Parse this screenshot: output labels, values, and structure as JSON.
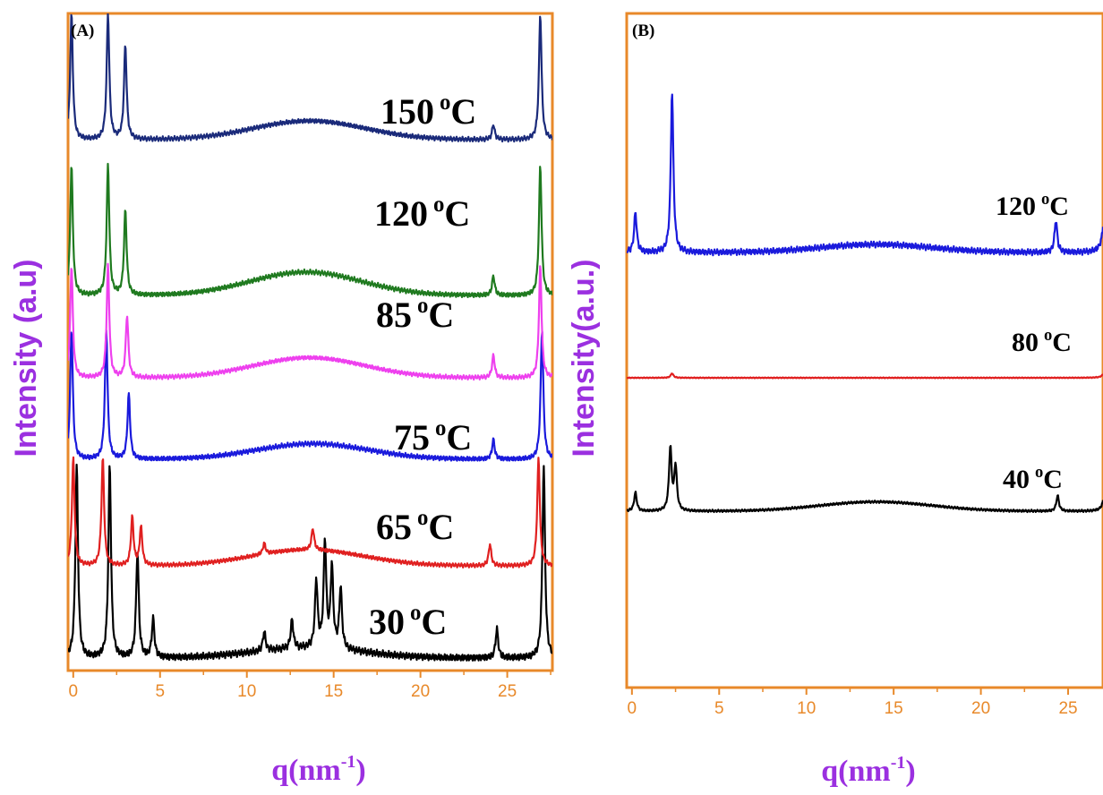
{
  "frame_color": "#e8892a",
  "label_color": "#9b30e0",
  "chart_data": [
    {
      "type": "line",
      "panel_label": "(A)",
      "xlabel_base": "q(nm",
      "xlabel_sup": "-1",
      "xlabel_close": ")",
      "ylabel": "Intensity (a.u)",
      "xlim": [
        -0.3,
        27.6
      ],
      "x_ticks": [
        0,
        5,
        10,
        15,
        20,
        25
      ],
      "x_tick_labels": [
        "0",
        "5",
        "10",
        "15",
        "20",
        "25"
      ],
      "series": [
        {
          "temp": "30",
          "unit": "C",
          "deg": "o",
          "color": "#000000",
          "peaks": [
            [
              0.2,
              1.0
            ],
            [
              2.1,
              1.0
            ],
            [
              3.7,
              0.55
            ],
            [
              4.6,
              0.2
            ],
            [
              11.0,
              0.1
            ],
            [
              12.6,
              0.15
            ],
            [
              14.0,
              0.35
            ],
            [
              14.5,
              0.55
            ],
            [
              14.9,
              0.42
            ],
            [
              15.4,
              0.32
            ],
            [
              24.4,
              0.15
            ],
            [
              27.1,
              1.0
            ]
          ],
          "hump": [
            13.5,
            0.05
          ]
        },
        {
          "temp": "65",
          "unit": "C",
          "deg": "o",
          "color": "#e02020",
          "peaks": [
            [
              0.0,
              1.0
            ],
            [
              1.7,
              1.0
            ],
            [
              3.4,
              0.45
            ],
            [
              3.9,
              0.35
            ],
            [
              11.0,
              0.1
            ],
            [
              13.8,
              0.2
            ],
            [
              24.0,
              0.2
            ],
            [
              26.8,
              1.0
            ]
          ],
          "hump": [
            13.5,
            0.15
          ]
        },
        {
          "temp": "75",
          "unit": "C",
          "deg": "o",
          "color": "#1a1adc",
          "peaks": [
            [
              -0.1,
              1.0
            ],
            [
              1.9,
              1.0
            ],
            [
              3.2,
              0.5
            ],
            [
              24.2,
              0.15
            ],
            [
              27.0,
              1.0
            ]
          ],
          "hump": [
            13.8,
            0.12
          ]
        },
        {
          "temp": "85",
          "unit": "C",
          "deg": "o",
          "color": "#ee40ee",
          "peaks": [
            [
              -0.1,
              1.0
            ],
            [
              2.0,
              1.0
            ],
            [
              3.1,
              0.55
            ],
            [
              24.2,
              0.2
            ],
            [
              26.9,
              1.0
            ]
          ],
          "hump": [
            13.6,
            0.18
          ]
        },
        {
          "temp": "120",
          "unit": "C",
          "deg": "o",
          "color": "#1f7a1f",
          "peaks": [
            [
              -0.1,
              1.0
            ],
            [
              2.0,
              1.0
            ],
            [
              3.0,
              0.65
            ],
            [
              24.2,
              0.15
            ],
            [
              26.9,
              1.0
            ]
          ],
          "hump": [
            13.4,
            0.18
          ]
        },
        {
          "temp": "150",
          "unit": "C",
          "deg": "o",
          "color": "#1a2a7a",
          "peaks": [
            [
              -0.1,
              1.0
            ],
            [
              2.0,
              1.0
            ],
            [
              3.0,
              0.75
            ],
            [
              24.2,
              0.12
            ],
            [
              26.9,
              1.0
            ]
          ],
          "hump": [
            13.6,
            0.15
          ]
        }
      ]
    },
    {
      "type": "line",
      "panel_label": "(B)",
      "xlabel_base": "q(nm",
      "xlabel_sup": "-1",
      "xlabel_close": ")",
      "ylabel": "Intensity(a.u.)",
      "xlim": [
        -0.3,
        27.0
      ],
      "x_ticks": [
        0,
        5,
        10,
        15,
        20,
        25
      ],
      "x_tick_labels": [
        "0",
        "5",
        "10",
        "15",
        "20",
        "25"
      ],
      "series": [
        {
          "temp": "40",
          "unit": "C",
          "deg": "o",
          "color": "#000000",
          "peaks": [
            [
              0.2,
              0.3
            ],
            [
              2.2,
              1.0
            ],
            [
              2.5,
              0.7
            ],
            [
              24.4,
              0.25
            ],
            [
              27.2,
              1.0
            ]
          ],
          "hump": [
            14.0,
            0.15
          ]
        },
        {
          "temp": "80",
          "unit": "C",
          "deg": "o",
          "color": "#e02020",
          "peaks": [
            [
              2.3,
              0.2
            ],
            [
              27.2,
              1.0
            ]
          ],
          "hump": [
            14.0,
            0.0
          ]
        },
        {
          "temp": "120",
          "unit": "C",
          "deg": "o",
          "color": "#1a1adc",
          "peaks": [
            [
              0.2,
              0.25
            ],
            [
              2.3,
              1.0
            ],
            [
              24.3,
              0.2
            ],
            [
              27.2,
              1.0
            ]
          ],
          "hump": [
            14.0,
            0.05
          ]
        }
      ]
    }
  ]
}
